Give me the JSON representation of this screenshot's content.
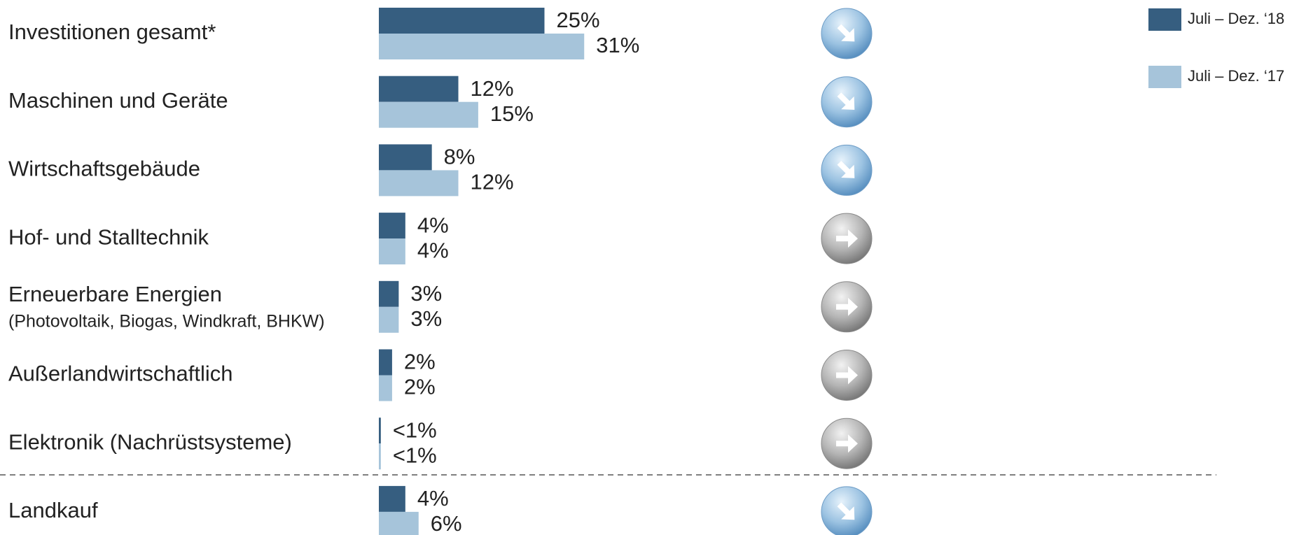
{
  "chart_data": {
    "type": "bar",
    "categories": [
      "Investitionen gesamt*",
      "Maschinen und Geräte",
      "Wirtschaftsgebäude",
      "Hof- und Stalltechnik",
      "Erneuerbare Energien",
      "Außerlandwirtschaftlich",
      "Elektronik (Nachrüstsysteme)",
      "Landkauf"
    ],
    "category_notes": [
      null,
      null,
      null,
      null,
      "(Photovoltaik, Biogas, Windkraft, BHKW)",
      null,
      null,
      null
    ],
    "trends": [
      "down",
      "down",
      "down",
      "flat",
      "flat",
      "flat",
      "flat",
      "down"
    ],
    "series": [
      {
        "name": "Juli – Dez. ‘18",
        "color": "#365e80",
        "values": [
          25,
          12,
          8,
          4,
          3,
          2,
          0.3,
          4
        ],
        "value_labels": [
          "25%",
          "12%",
          "8%",
          "4%",
          "3%",
          "2%",
          "<1%",
          "4%"
        ]
      },
      {
        "name": "Juli – Dez. ‘17",
        "color": "#a6c4da",
        "values": [
          31,
          15,
          12,
          4,
          3,
          2,
          0.3,
          6
        ],
        "value_labels": [
          "31%",
          "15%",
          "12%",
          "4%",
          "3%",
          "2%",
          "<1%",
          "6%"
        ]
      }
    ]
  }
}
